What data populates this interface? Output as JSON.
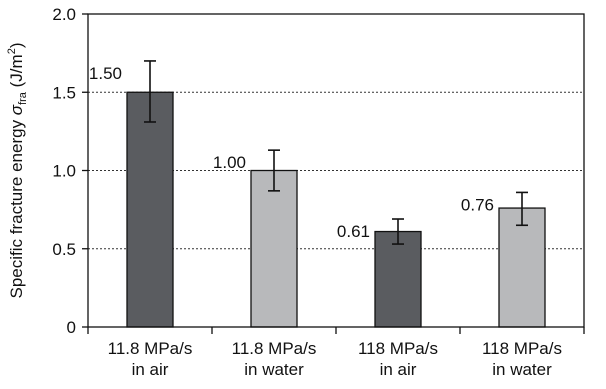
{
  "chart_data": {
    "type": "bar",
    "title": "",
    "xlabel": "",
    "ylabel": {
      "prefix": "Specific fracture energy ",
      "symbol": "σ",
      "subscript": "fra",
      "unit_open": " (J/m",
      "unit_sup": "2",
      "unit_close": ")"
    },
    "ylim": [
      0,
      2.0
    ],
    "yticks": [
      "0",
      "0.5",
      "1.0",
      "1.5",
      "2.0"
    ],
    "ytick_values": [
      0,
      0.5,
      1.0,
      1.5,
      2.0
    ],
    "grid": "horizontal dotted at 0.5, 1.0, 1.5",
    "legend": "none",
    "categories": [
      [
        "11.8 MPa/s",
        "in air"
      ],
      [
        "11.8 MPa/s",
        "in water"
      ],
      [
        "118 MPa/s",
        "in air"
      ],
      [
        "118 MPa/s",
        "in water"
      ]
    ],
    "values": [
      1.5,
      1.0,
      0.61,
      0.76
    ],
    "value_labels": [
      "1.50",
      "1.00",
      "0.61",
      "0.76"
    ],
    "error_low": [
      1.31,
      0.87,
      0.53,
      0.65
    ],
    "error_high": [
      1.7,
      1.13,
      0.69,
      0.86
    ],
    "bar_colors": [
      "#5a5c60",
      "#b8b9bb",
      "#5a5c60",
      "#b8b9bb"
    ]
  }
}
